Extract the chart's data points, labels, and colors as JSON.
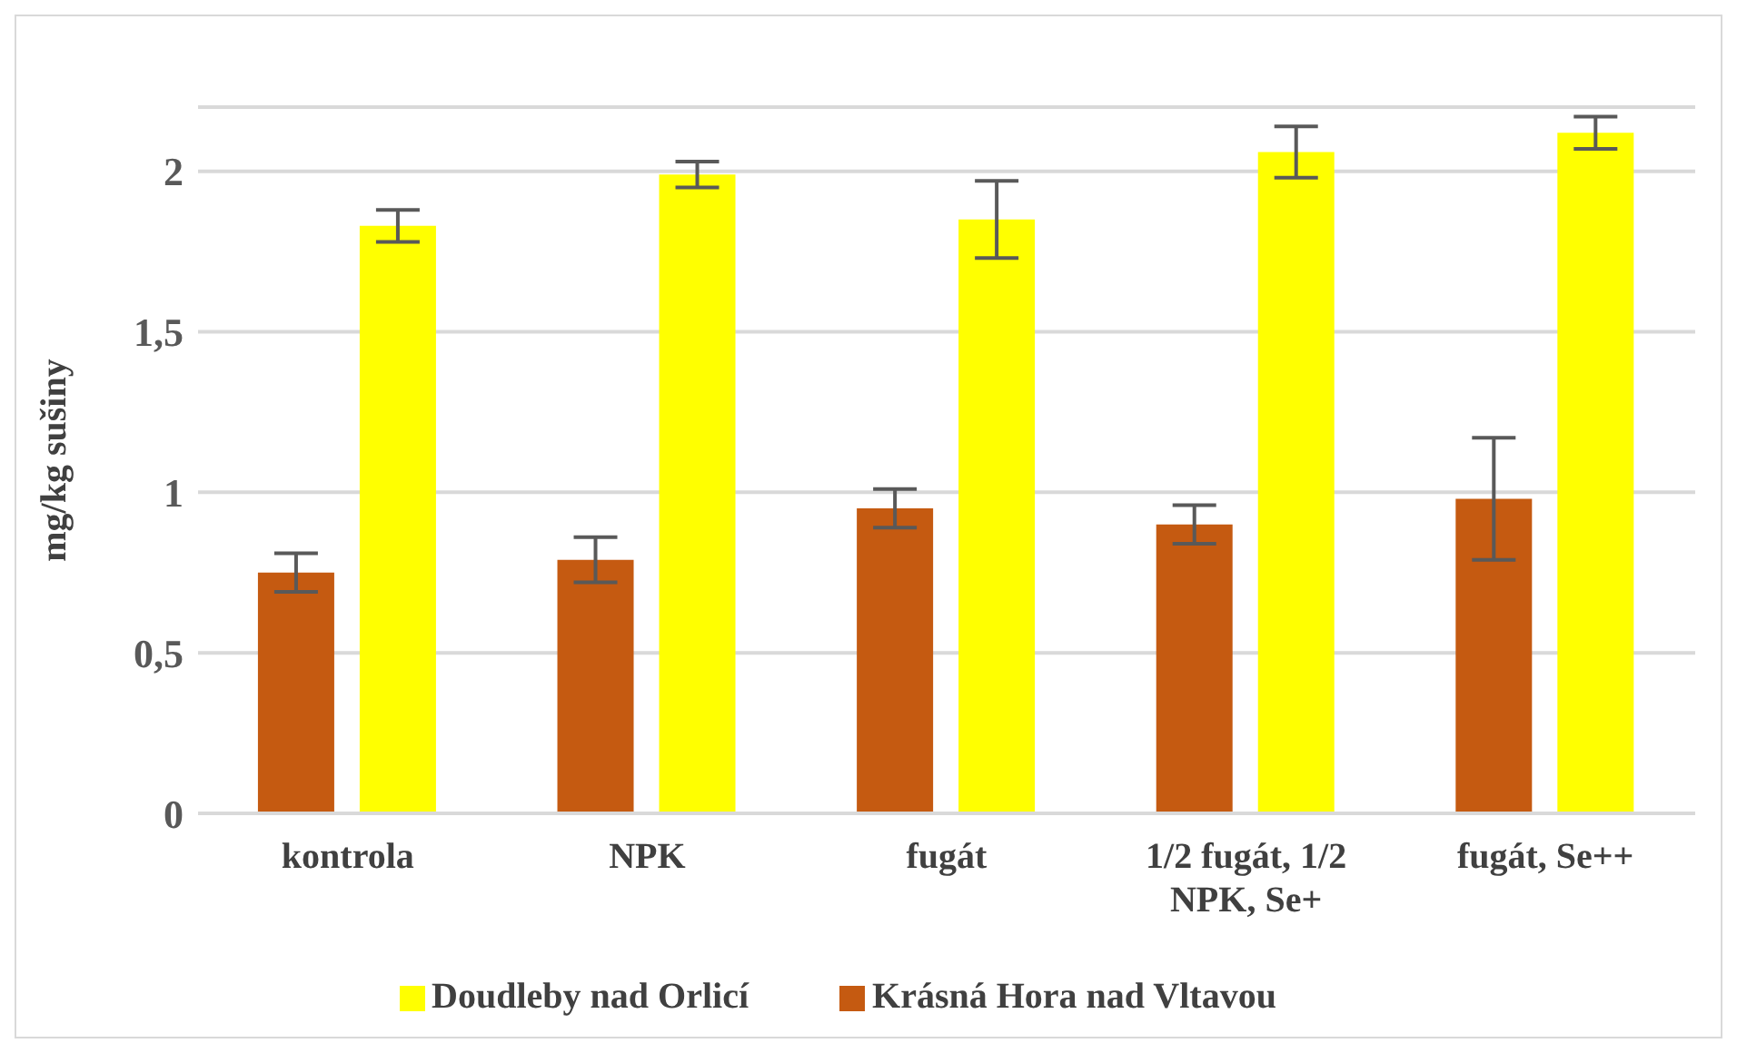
{
  "chart_data": {
    "type": "bar",
    "ylabel": "mg/kg sušiny",
    "categories": [
      "kontrola",
      "NPK",
      "fugát",
      "1/2 fugát, 1/2 NPK, Se+",
      "fugát, Se++"
    ],
    "series": [
      {
        "name": "Krásná Hora nad Vltavou",
        "color": "#c55a11",
        "values": [
          0.75,
          0.79,
          0.95,
          0.9,
          0.98
        ],
        "errors": [
          0.06,
          0.07,
          0.06,
          0.06,
          0.19
        ]
      },
      {
        "name": "Doudleby nad Orlicí",
        "color": "#ffff00",
        "values": [
          1.83,
          1.99,
          1.85,
          2.06,
          2.12
        ],
        "errors": [
          0.05,
          0.04,
          0.12,
          0.08,
          0.05
        ]
      }
    ],
    "ylim": [
      0,
      2.2
    ],
    "yticks": [
      0,
      {
        "value": 0.5,
        "label": "0,5"
      },
      1,
      {
        "value": 1.5,
        "label": "1,5"
      },
      2
    ],
    "grid": "y",
    "legend": "bottom"
  }
}
